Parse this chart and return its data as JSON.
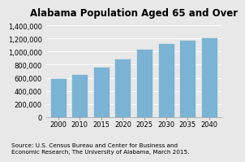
{
  "title": "Alabama Population Aged 65 and Over",
  "categories": [
    "2000",
    "2010",
    "2015",
    "2020",
    "2025",
    "2030",
    "2035",
    "2040"
  ],
  "values": [
    590000,
    660000,
    770000,
    890000,
    1040000,
    1130000,
    1185000,
    1215000
  ],
  "bar_color": "#7ab3d4",
  "ylim": [
    0,
    1500000
  ],
  "yticks": [
    0,
    200000,
    400000,
    600000,
    800000,
    1000000,
    1200000,
    1400000
  ],
  "source_text": "Source: U.S. Census Bureau and Center for Business and\nEconomic Research, The University of Alabama, March 2015.",
  "background_color": "#e8e8e8",
  "title_fontsize": 8.5,
  "tick_fontsize": 6,
  "source_fontsize": 5.2
}
